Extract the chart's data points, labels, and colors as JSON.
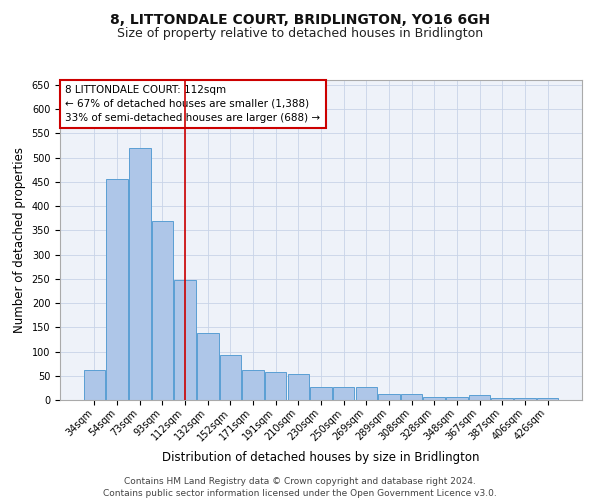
{
  "title": "8, LITTONDALE COURT, BRIDLINGTON, YO16 6GH",
  "subtitle": "Size of property relative to detached houses in Bridlington",
  "xlabel": "Distribution of detached houses by size in Bridlington",
  "ylabel": "Number of detached properties",
  "categories": [
    "34sqm",
    "54sqm",
    "73sqm",
    "93sqm",
    "112sqm",
    "132sqm",
    "152sqm",
    "171sqm",
    "191sqm",
    "210sqm",
    "230sqm",
    "250sqm",
    "269sqm",
    "289sqm",
    "308sqm",
    "328sqm",
    "348sqm",
    "367sqm",
    "387sqm",
    "406sqm",
    "426sqm"
  ],
  "values": [
    62,
    455,
    520,
    370,
    248,
    138,
    92,
    62,
    57,
    53,
    26,
    26,
    26,
    12,
    12,
    7,
    7,
    10,
    4,
    4,
    4
  ],
  "bar_color": "#aec6e8",
  "bar_edge_color": "#5a9fd4",
  "property_index": 4,
  "property_label": "8 LITTONDALE COURT: 112sqm",
  "annotation_line1": "← 67% of detached houses are smaller (1,388)",
  "annotation_line2": "33% of semi-detached houses are larger (688) →",
  "vline_color": "#cc0000",
  "annotation_box_color": "#cc0000",
  "ylim": [
    0,
    660
  ],
  "yticks": [
    0,
    50,
    100,
    150,
    200,
    250,
    300,
    350,
    400,
    450,
    500,
    550,
    600,
    650
  ],
  "footer_line1": "Contains HM Land Registry data © Crown copyright and database right 2024.",
  "footer_line2": "Contains public sector information licensed under the Open Government Licence v3.0.",
  "bg_color": "#eef2f9",
  "grid_color": "#c8d4e8",
  "title_fontsize": 10,
  "subtitle_fontsize": 9,
  "axis_label_fontsize": 8.5,
  "tick_fontsize": 7,
  "annot_fontsize": 7.5,
  "footer_fontsize": 6.5
}
